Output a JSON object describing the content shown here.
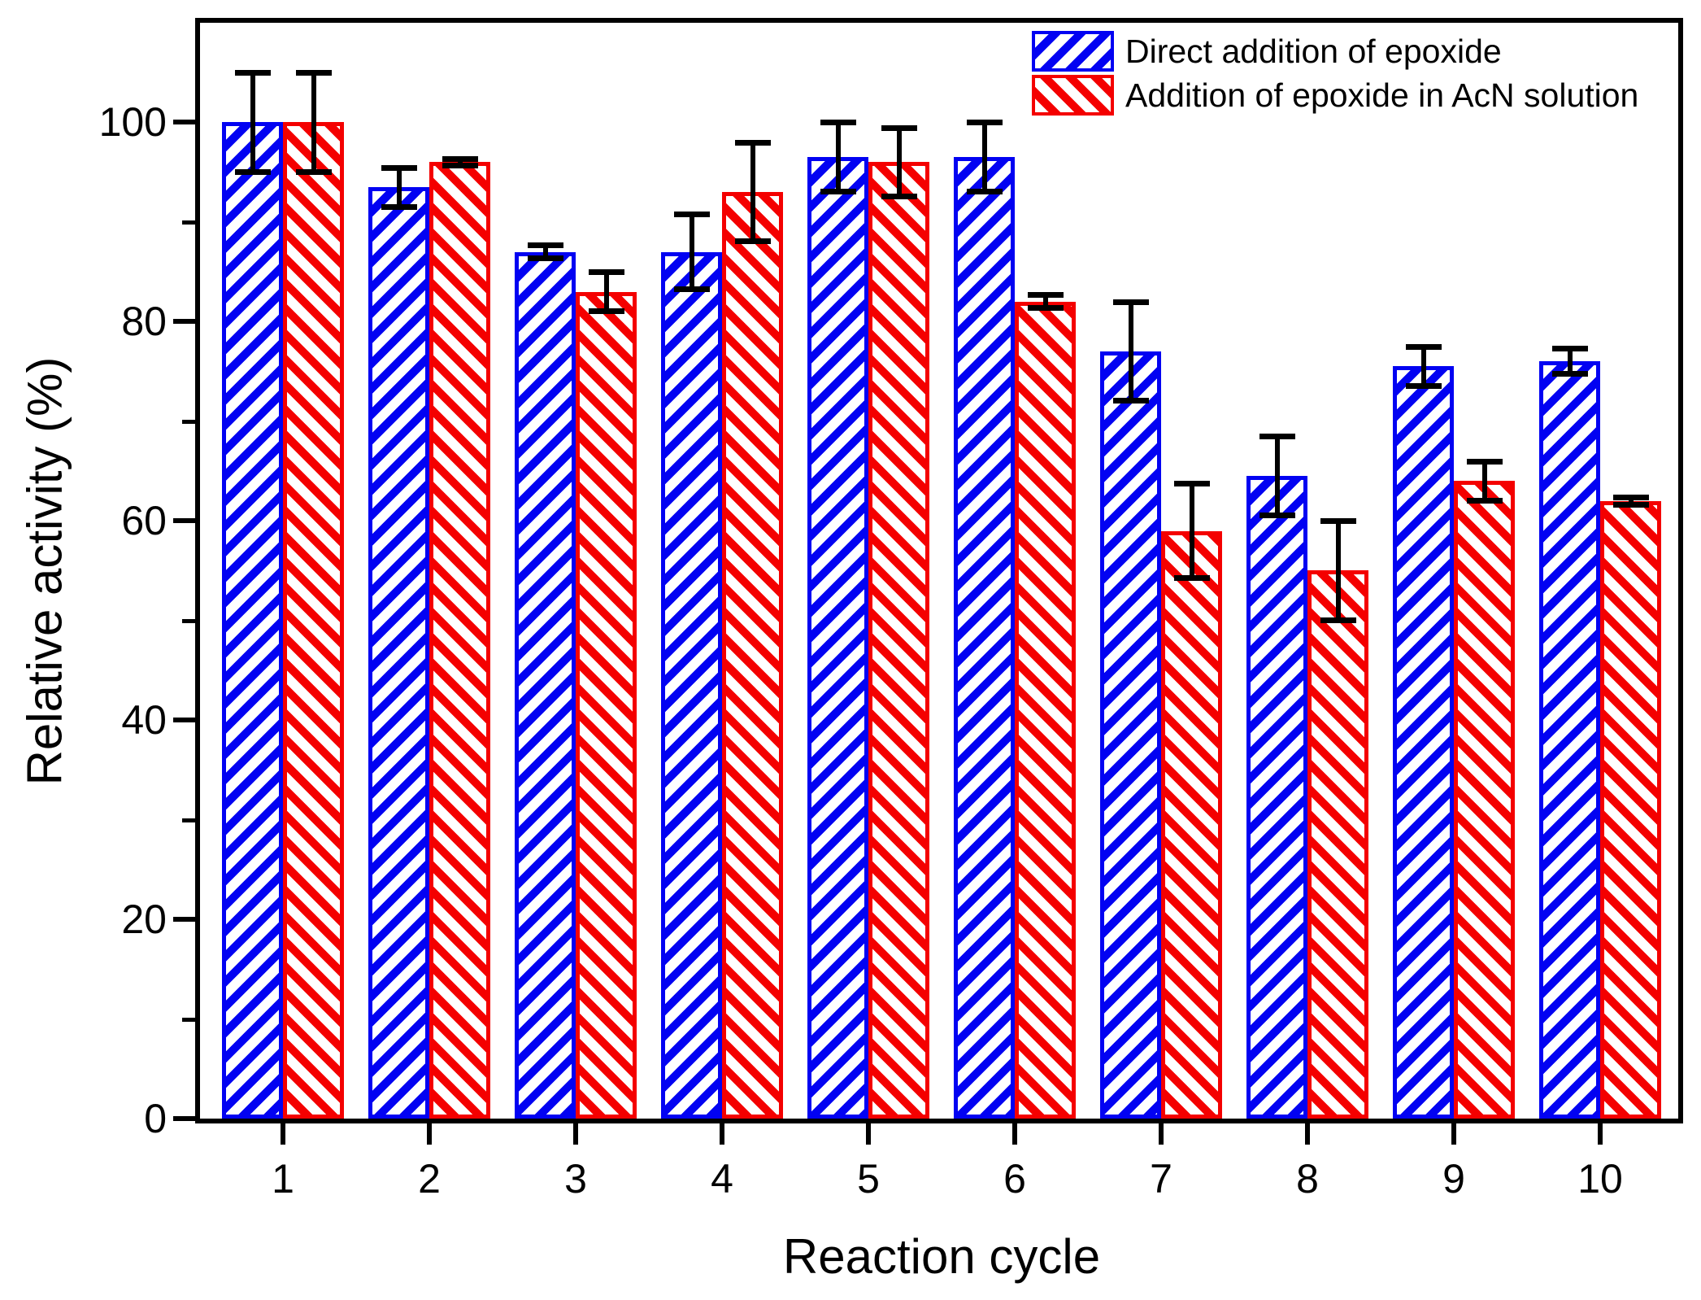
{
  "chart_data": {
    "type": "bar",
    "title": "",
    "xlabel": "Reaction cycle",
    "ylabel": "Relative activity (%)",
    "categories": [
      "1",
      "2",
      "3",
      "4",
      "5",
      "6",
      "7",
      "8",
      "9",
      "10"
    ],
    "series": [
      {
        "name": "Direct addition of epoxide",
        "color": "#0202f2",
        "hatch": "/",
        "values": [
          100,
          93.5,
          87,
          87,
          96.5,
          96.5,
          77,
          64.5,
          75.5,
          76
        ],
        "errors": [
          5,
          2,
          0.7,
          3.8,
          3.5,
          3.5,
          5,
          4,
          2,
          1.3
        ]
      },
      {
        "name": "Addition of epoxide in AcN solution",
        "color": "#f40000",
        "hatch": "\\",
        "values": [
          100,
          96,
          83,
          93,
          96,
          82,
          59,
          55,
          64,
          62
        ],
        "errors": [
          5,
          0.4,
          2,
          5,
          3.5,
          0.7,
          4.8,
          5,
          2,
          0.4
        ]
      }
    ],
    "ylim": [
      0,
      110
    ],
    "yticks_major": [
      0,
      20,
      40,
      60,
      80,
      100
    ],
    "yticks_minor": [
      10,
      30,
      50,
      70,
      90
    ],
    "error_bar_color": "#000000",
    "axis_color": "#000000",
    "legend_position": "top-right-inside",
    "grid": false
  }
}
